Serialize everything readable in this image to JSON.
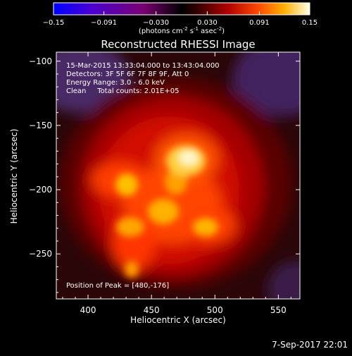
{
  "colorbar": {
    "ticks": [
      "-0.15",
      "-0.091",
      "-0.030",
      "0.030",
      "0.091",
      "0.15"
    ],
    "tick_values": [
      -0.15,
      -0.091,
      -0.03,
      0.03,
      0.091,
      0.15
    ],
    "units_prefix": "(photons cm",
    "units_exp1": "-2",
    "units_mid1": " s",
    "units_exp2": "-1",
    "units_mid2": " asec",
    "units_exp3": "-2",
    "units_suffix": ")"
  },
  "title": "Reconstructed RHESSI Image",
  "annotations": {
    "line1": "15-Mar-2015 13:33:04.000 to 13:43:04.000",
    "line2": "Detectors: 3F 5F 6F 7F 8F 9F, Att 0",
    "line3": "Energy Range: 3.0 - 6.0 keV",
    "line4": "Clean     Total counts: 2.01E+05",
    "peak": "Position of Peak = [480,-176]"
  },
  "footer": {
    "date": "7-Sep-2017 22:01"
  },
  "chart_data": {
    "type": "heatmap",
    "title": "Reconstructed RHESSI Image",
    "xlabel": "Heliocentric X (arcsec)",
    "ylabel": "Heliocentric Y (arcsec)",
    "xlim": [
      375,
      567
    ],
    "ylim": [
      -285,
      -93
    ],
    "x_ticks": [
      400,
      450,
      500,
      550
    ],
    "x_tick_labels": [
      "400",
      "450",
      "500",
      "550"
    ],
    "y_ticks": [
      -100,
      -150,
      -200,
      -250
    ],
    "y_tick_labels": [
      "-100",
      "-150",
      "-200",
      "-250"
    ],
    "colorbar_range": [
      -0.15,
      0.15
    ],
    "peak_position": [
      480,
      -176
    ],
    "grid": false
  }
}
